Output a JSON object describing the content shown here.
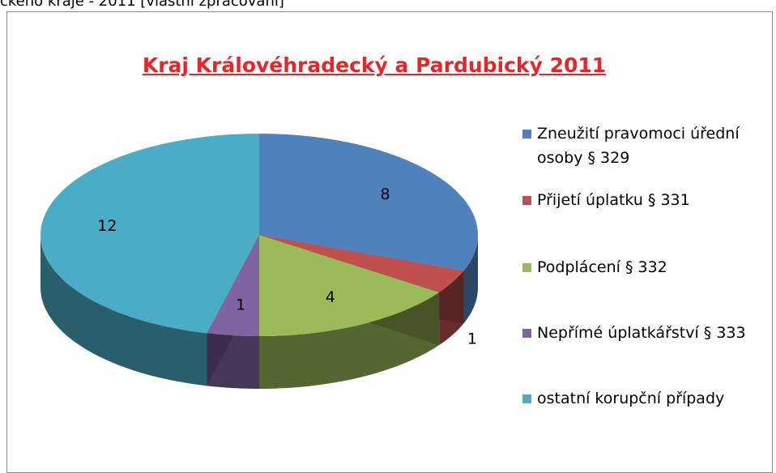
{
  "caption": "ckého kraje - 2011 [vlastní zpracování]",
  "chart_data": {
    "type": "pie3d",
    "title": "Kraj Královéhradecký a Pardubický 2011",
    "categories": [
      "Zneužití pravomoci úřední osoby § 329",
      "Přijetí úplatku § 331",
      "Podplácení § 332",
      "Nepřímé úplatkářství § 333",
      "ostatní korupční případy"
    ],
    "values": [
      8,
      1,
      4,
      1,
      12
    ],
    "colors": [
      "#4f81bd",
      "#c0504d",
      "#9bbb59",
      "#8064a2",
      "#4bacc6"
    ],
    "legend": "right"
  }
}
